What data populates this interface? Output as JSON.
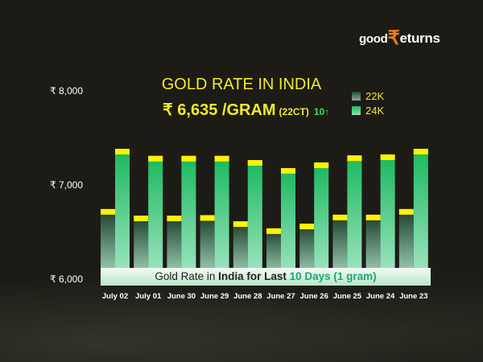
{
  "logo": {
    "text": "goodReturns",
    "part1": "good",
    "rupee": "₹",
    "part2": "eturns"
  },
  "header": {
    "title": "GOLD RATE IN INDIA",
    "price": "₹ 6,635 /GRAM",
    "unit": "(22CT)",
    "change": "10↑"
  },
  "banner": {
    "p1": "Gold Rate in ",
    "p2": "India for Last ",
    "p3": "10 Days (1 gram)"
  },
  "colors": {
    "background": "#1c1b15",
    "k22": "#2f6b4a",
    "k24": "#1db863",
    "cap": "#fff200",
    "text": "#f2ea2a"
  },
  "chart_data": {
    "type": "bar",
    "title": "GOLD RATE IN INDIA",
    "categories": [
      "July 02",
      "July 01",
      "June 30",
      "June 29",
      "June 28",
      "June 27",
      "June 26",
      "June 25",
      "June 24",
      "June 23"
    ],
    "series": [
      {
        "name": "22K",
        "values": [
          6745,
          6675,
          6675,
          6680,
          6615,
          6540,
          6590,
          6685,
          6685,
          6745
        ]
      },
      {
        "name": "24K",
        "values": [
          7385,
          7310,
          7310,
          7310,
          7265,
          7180,
          7240,
          7315,
          7325,
          7385
        ]
      }
    ],
    "yticks": [
      "₹ 6,000",
      "₹ 7,000",
      "₹ 8,000"
    ],
    "ytick_values": [
      6000,
      7000,
      8000
    ],
    "ylim": [
      6000,
      8000
    ],
    "legend": "top-right",
    "grid": false
  }
}
